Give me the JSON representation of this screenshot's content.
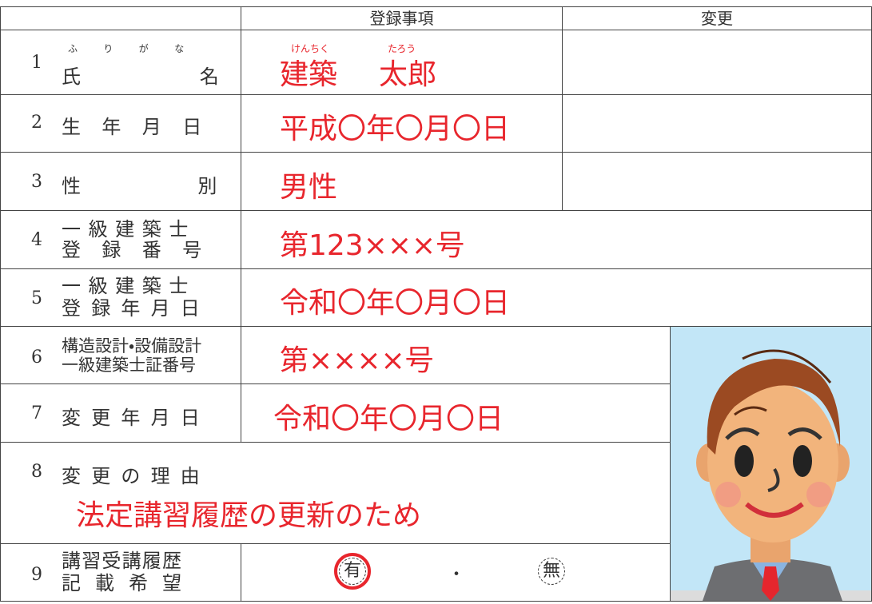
{
  "header": {
    "registered": "登録事項",
    "change": "変更"
  },
  "rows": [
    {
      "number": "1",
      "furigana": "ふりがな",
      "label": "氏名",
      "value_ruby": [
        "けんちく",
        "たろう"
      ],
      "value": [
        "建築",
        "太郎"
      ]
    },
    {
      "number": "2",
      "label": "生年月日",
      "value": "平成〇年〇月〇日"
    },
    {
      "number": "3",
      "label": "性別",
      "value": "男性"
    },
    {
      "number": "4",
      "label": [
        "一級建築士",
        "登録番号"
      ],
      "value": "第123×××号"
    },
    {
      "number": "5",
      "label": [
        "一級建築士",
        "登録年月日"
      ],
      "value": "令和〇年〇月〇日"
    },
    {
      "number": "6",
      "label": [
        "構造設計・設備設計",
        "一級建築士証番号"
      ],
      "value": "第××××号"
    },
    {
      "number": "7",
      "label": "変更年月日",
      "value": "令和〇年〇月〇日"
    },
    {
      "number": "8",
      "label": "変更の理由",
      "value": "法定講習履歴の更新のため"
    },
    {
      "number": "9",
      "label": [
        "講習受講履歴",
        "記載希望"
      ],
      "options": [
        "有",
        "無"
      ],
      "separator": "・"
    }
  ]
}
